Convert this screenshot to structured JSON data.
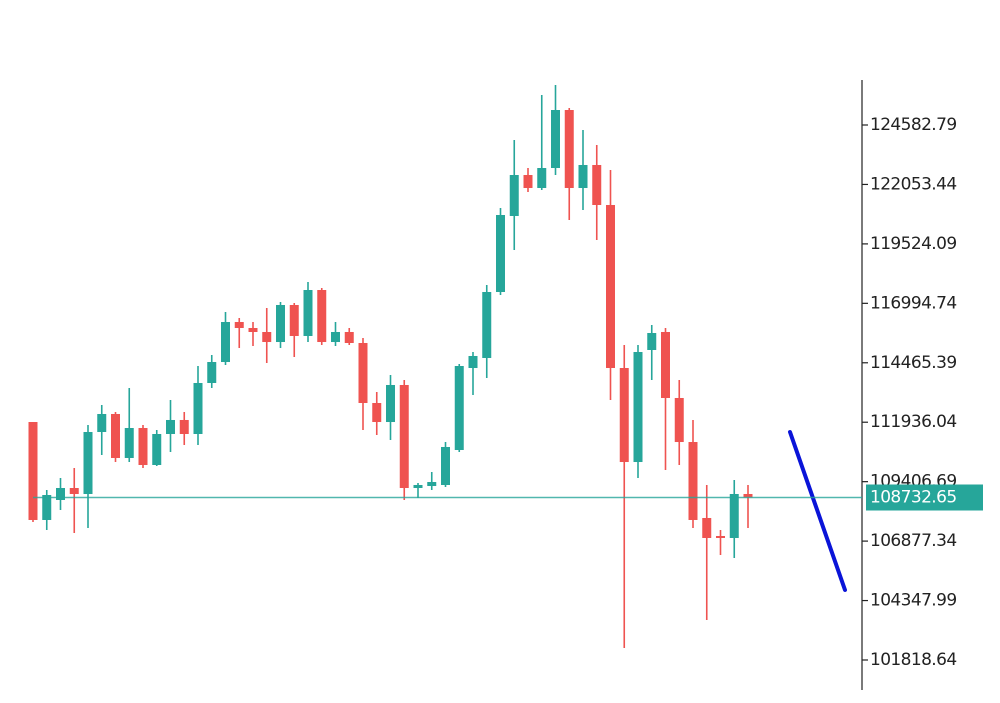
{
  "chart_data": {
    "type": "candlestick",
    "open": [
      111945,
      107776,
      108627,
      109137,
      108882,
      111520,
      112286,
      110414,
      111690,
      110116,
      111435,
      112031,
      111435,
      113605,
      114498,
      116200,
      115945,
      115775,
      115349,
      116924,
      115605,
      117562,
      115349,
      115775,
      115307,
      112754,
      111945,
      113520,
      109137,
      109222,
      109265,
      110754,
      114243,
      114669,
      117477,
      120711,
      122455,
      121902,
      122753,
      125221,
      121902,
      122881,
      121179,
      114243,
      110243,
      115009,
      115775,
      112967,
      111094,
      107861,
      107095,
      107010,
      108882
    ],
    "high": [
      111945,
      109052,
      109563,
      109988,
      111818,
      112669,
      112371,
      113392,
      111818,
      111605,
      112882,
      112371,
      114328,
      114796,
      116626,
      116371,
      116200,
      116796,
      117051,
      117009,
      117902,
      117647,
      116200,
      115945,
      115520,
      113222,
      113945,
      113733,
      109350,
      109818,
      111094,
      114413,
      114924,
      117775,
      121051,
      123945,
      122753,
      125859,
      126285,
      125306,
      124370,
      123732,
      122668,
      115222,
      115222,
      116073,
      115945,
      113733,
      112031,
      109265,
      107350,
      109478,
      109265
    ],
    "low": [
      107690,
      107350,
      108201,
      107222,
      107435,
      110541,
      110243,
      110243,
      109988,
      110073,
      110669,
      110967,
      110967,
      113392,
      114371,
      115094,
      115179,
      114456,
      115094,
      114711,
      115349,
      115222,
      115179,
      115222,
      111605,
      111392,
      111180,
      108627,
      108712,
      109052,
      109180,
      110669,
      113094,
      113818,
      117349,
      119264,
      121732,
      121817,
      122455,
      120541,
      120966,
      119690,
      112882,
      102329,
      109563,
      113733,
      109903,
      110116,
      107435,
      103521,
      106286,
      106159,
      107435
    ],
    "close": [
      107776,
      108839,
      109137,
      108882,
      111520,
      112286,
      110414,
      111690,
      110116,
      111435,
      112031,
      111435,
      113605,
      114498,
      116200,
      115945,
      115775,
      115349,
      116924,
      115605,
      117562,
      115349,
      115775,
      115307,
      112754,
      111945,
      113520,
      109137,
      109265,
      109392,
      110882,
      114328,
      114754,
      117477,
      120753,
      122455,
      121902,
      122753,
      125221,
      121902,
      122881,
      121179,
      114243,
      110243,
      114924,
      115732,
      112967,
      111094,
      107776,
      107010,
      107010,
      108882,
      108732.65
    ],
    "up_color": "#26a69a",
    "down_color": "#ef5350",
    "last_price": 108732.65,
    "last_price_color": "#26a69a",
    "ylim": [
      100542,
      126497.5
    ],
    "yticks": [
      124582.79,
      122053.44,
      119524.09,
      116994.74,
      114465.39,
      111936.04,
      109406.69,
      106877.34,
      104347.99,
      101818.64
    ]
  }
}
